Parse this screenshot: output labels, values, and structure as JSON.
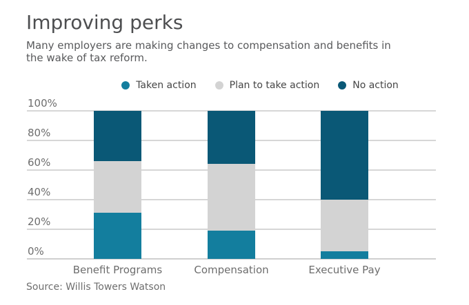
{
  "header": {
    "title": "Improving perks",
    "subtitle": "Many employers are making changes to compensation and benefits in the wake of tax reform."
  },
  "footer": {
    "source": "Source: Willis Towers Watson"
  },
  "colors": {
    "taken": "#137e9e",
    "plan": "#d3d3d3",
    "none": "#0a5876",
    "grid": "#d6d6d6",
    "title_text": "#4d4e50",
    "subtitle_text": "#58595b",
    "axis_text": "#6d6d6d"
  },
  "chart_data": {
    "type": "bar",
    "stacked": true,
    "title": "Improving perks",
    "subtitle": "Many employers are making changes to compensation and benefits in the wake of tax reform.",
    "categories": [
      "Benefit Programs",
      "Compensation",
      "Executive Pay"
    ],
    "series": [
      {
        "name": "Taken action",
        "color_key": "taken",
        "values": [
          31,
          19,
          5
        ]
      },
      {
        "name": "Plan to take action",
        "color_key": "plan",
        "values": [
          35,
          45,
          35
        ]
      },
      {
        "name": "No action",
        "color_key": "none",
        "values": [
          34,
          36,
          60
        ]
      }
    ],
    "ylim": [
      0,
      100
    ],
    "yticks": [
      {
        "value": 0,
        "label": "0%"
      },
      {
        "value": 20,
        "label": "20%"
      },
      {
        "value": 40,
        "label": "40%"
      },
      {
        "value": 60,
        "label": "60%"
      },
      {
        "value": 80,
        "label": "80%"
      },
      {
        "value": 100,
        "label": "100%"
      }
    ],
    "grid": true,
    "legend_position": "top-center",
    "source": "Source: Willis Towers Watson"
  }
}
